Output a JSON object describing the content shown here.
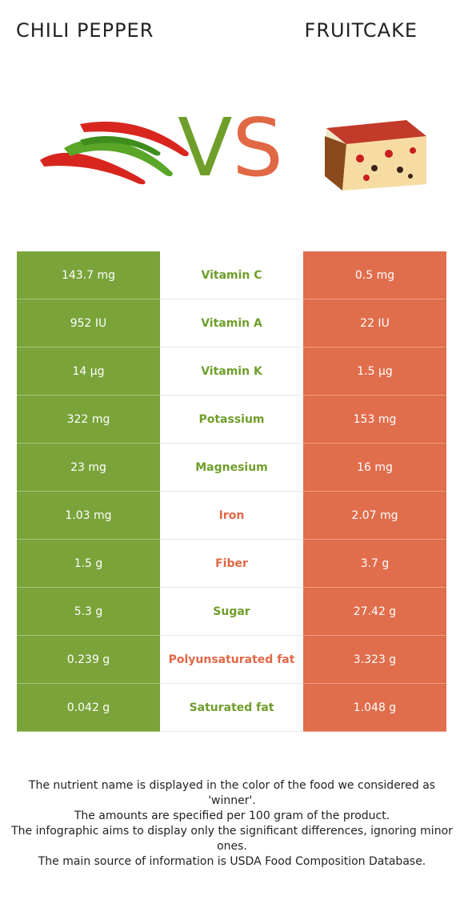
{
  "header": {
    "left_title": "CHILI PEPPER",
    "right_title": "FRUITCAKE",
    "vs_v": "V",
    "vs_s": "S"
  },
  "colors": {
    "left_food": "#7aa33a",
    "right_food": "#e06d4c",
    "left_winner_text": "#6f9e2b",
    "right_winner_text": "#e06845"
  },
  "rows": [
    {
      "left": "143.7 mg",
      "nutrient": "Vitamin C",
      "right": "0.5 mg",
      "winner": "left"
    },
    {
      "left": "952 IU",
      "nutrient": "Vitamin A",
      "right": "22 IU",
      "winner": "left"
    },
    {
      "left": "14 µg",
      "nutrient": "Vitamin K",
      "right": "1.5 µg",
      "winner": "left"
    },
    {
      "left": "322 mg",
      "nutrient": "Potassium",
      "right": "153 mg",
      "winner": "left"
    },
    {
      "left": "23 mg",
      "nutrient": "Magnesium",
      "right": "16 mg",
      "winner": "left"
    },
    {
      "left": "1.03 mg",
      "nutrient": "Iron",
      "right": "2.07 mg",
      "winner": "right"
    },
    {
      "left": "1.5 g",
      "nutrient": "Fiber",
      "right": "3.7 g",
      "winner": "right"
    },
    {
      "left": "5.3 g",
      "nutrient": "Sugar",
      "right": "27.42 g",
      "winner": "left"
    },
    {
      "left": "0.239 g",
      "nutrient": "Polyunsaturated fat",
      "right": "3.323 g",
      "winner": "right"
    },
    {
      "left": "0.042 g",
      "nutrient": "Saturated fat",
      "right": "1.048 g",
      "winner": "left"
    }
  ],
  "footer": {
    "line1": "The nutrient name is displayed in the color of the food we considered as 'winner'.",
    "line2": "The amounts are specified per 100 gram of the product.",
    "line3": "The infographic aims to display only the significant differences, ignoring minor ones.",
    "line4": "The main source of information is USDA Food Composition Database."
  }
}
